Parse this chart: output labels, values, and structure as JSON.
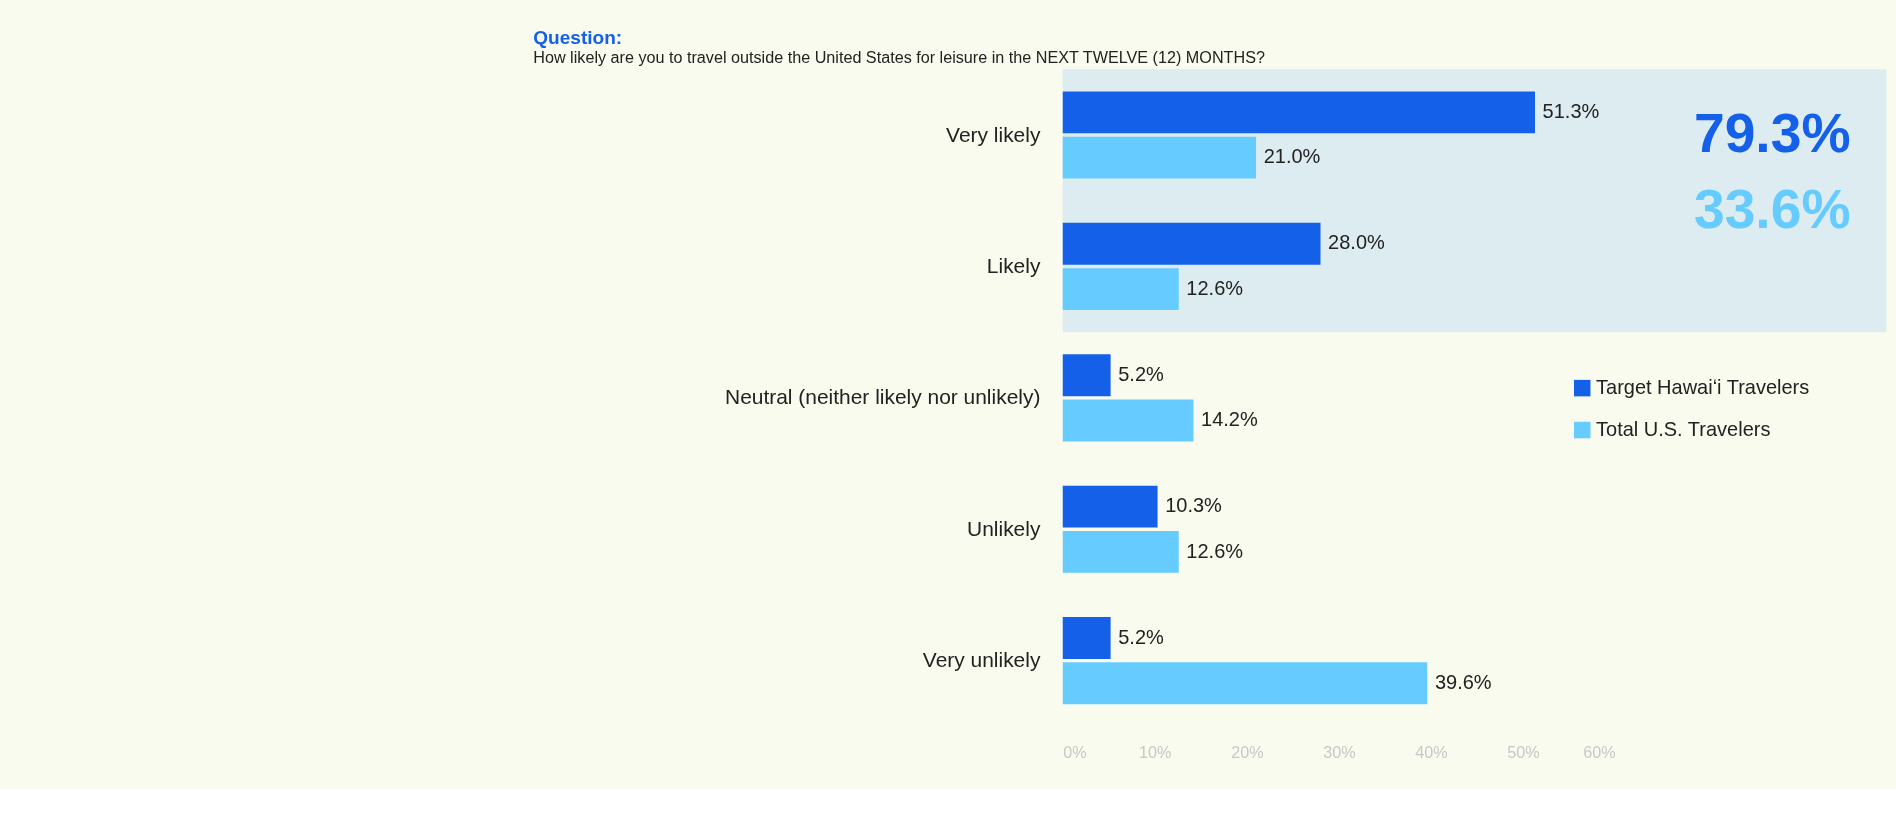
{
  "chart_data": {
    "type": "bar",
    "orientation": "horizontal",
    "title": "Question:",
    "subtitle": "How likely are you to travel outside the United States for leisure in the NEXT TWELVE (12) MONTHS?",
    "categories": [
      "Very likely",
      "Likely",
      "Neutral (neither likely nor unlikely)",
      "Unlikely",
      "Very unlikely"
    ],
    "series": [
      {
        "name": "Target Hawaiʻi Travelers",
        "color": "#1560e8",
        "values": [
          51.3,
          28.0,
          5.2,
          10.3,
          5.2
        ],
        "value_labels": [
          "51.3%",
          "28.0%",
          "5.2%",
          "10.3%",
          "5.2%"
        ]
      },
      {
        "name": "Total U.S. Travelers",
        "color": "#66ccff",
        "values": [
          21.0,
          12.6,
          14.2,
          12.6,
          39.6
        ],
        "value_labels": [
          "21.0%",
          "12.6%",
          "14.2%",
          "12.6%",
          "39.6%"
        ]
      }
    ],
    "xlim": [
      0,
      60
    ],
    "xticks": [
      {
        "value": 0,
        "label": "0%"
      },
      {
        "value": 10,
        "label": "10%"
      },
      {
        "value": 20,
        "label": "20%"
      },
      {
        "value": 30,
        "label": "30%"
      },
      {
        "value": 40,
        "label": "40%"
      },
      {
        "value": 50,
        "label": "50%"
      },
      {
        "value": 60,
        "label": "60%"
      }
    ],
    "bands": [
      {
        "axis": "y",
        "from": "Very likely",
        "to": "Likely",
        "color": "#dcecf0"
      }
    ],
    "annotations": [
      "79.3%",
      "33.6%"
    ],
    "legend": "right",
    "grid": false
  }
}
